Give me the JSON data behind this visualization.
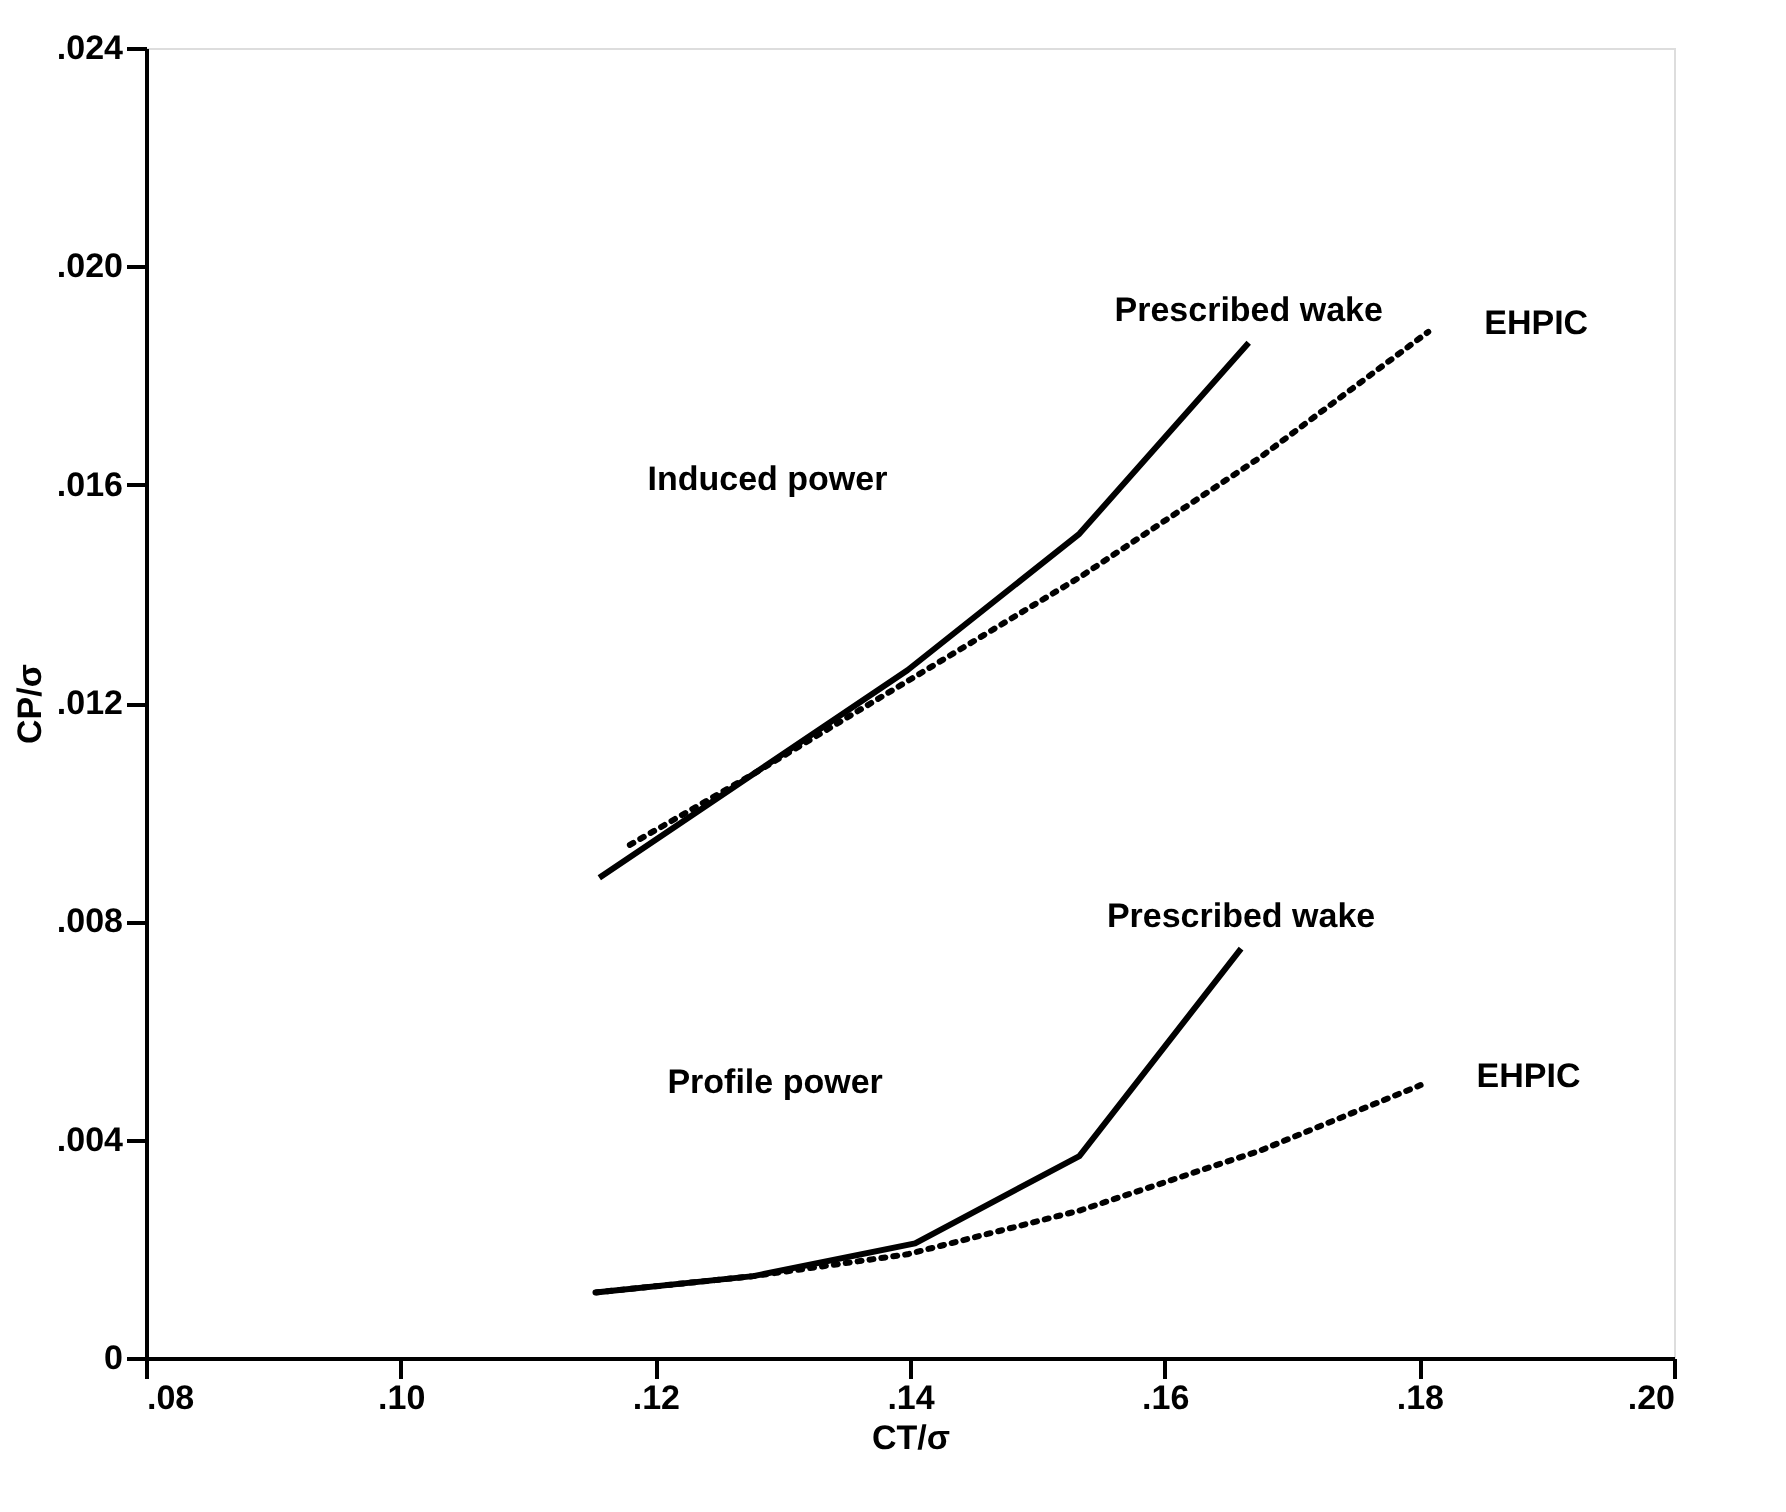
{
  "chart_data": {
    "type": "line",
    "xlabel": "CT/σ",
    "ylabel": "CP/σ",
    "xlim": [
      0.08,
      0.2
    ],
    "ylim": [
      0,
      0.024
    ],
    "xticks": [
      {
        "value": 0.08,
        "label": ".08"
      },
      {
        "value": 0.1,
        "label": ".10"
      },
      {
        "value": 0.12,
        "label": ".12"
      },
      {
        "value": 0.14,
        "label": ".14"
      },
      {
        "value": 0.16,
        "label": ".16"
      },
      {
        "value": 0.18,
        "label": ".18"
      },
      {
        "value": 0.2,
        "label": ".20"
      }
    ],
    "yticks": [
      0,
      {
        "value": 0.004,
        "label": ".004"
      },
      {
        "value": 0.008,
        "label": ".008"
      },
      {
        "value": 0.012,
        "label": ".012"
      },
      {
        "value": 0.016,
        "label": ".016"
      },
      {
        "value": 0.02,
        "label": ".020"
      },
      {
        "value": 0.024,
        "label": ".024"
      }
    ],
    "grid": false,
    "marker": "none",
    "series": [
      {
        "name": "Prescribed wake",
        "color": "#000000",
        "line_style": "solid",
        "x": [
          0.1156,
          0.1277,
          0.1398,
          0.1533,
          0.1666
        ],
        "values": [
          0.0088,
          0.0107,
          0.0126,
          0.0151,
          0.0186
        ]
      },
      {
        "name": "EHPIC",
        "color": "#000000",
        "line_style": "dotted",
        "x": [
          0.118,
          0.1277,
          0.1398,
          0.1533,
          0.1675,
          0.1807
        ],
        "values": [
          0.0094,
          0.0107,
          0.0124,
          0.0143,
          0.0165,
          0.0188
        ]
      },
      {
        "name": "Prescribed wake",
        "color": "#000000",
        "line_style": "solid",
        "x": [
          0.1153,
          0.1277,
          0.1404,
          0.1533,
          0.166
        ],
        "values": [
          0.0012,
          0.0015,
          0.0021,
          0.0037,
          0.0075
        ]
      },
      {
        "name": "EHPIC",
        "color": "#000000",
        "line_style": "dotted",
        "x": [
          0.1153,
          0.1277,
          0.1398,
          0.1533,
          0.1675,
          0.1801
        ],
        "values": [
          0.0012,
          0.0015,
          0.0019,
          0.0027,
          0.0038,
          0.005
        ]
      }
    ],
    "annotations": [
      "Induced power",
      "Profile power"
    ]
  }
}
